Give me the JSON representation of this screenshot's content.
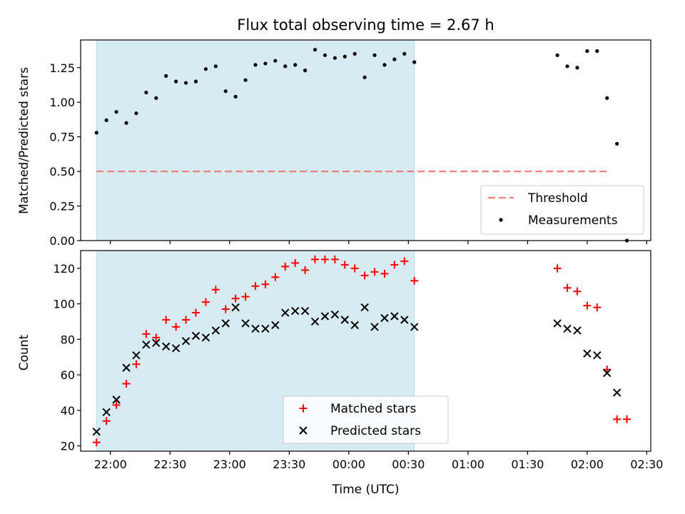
{
  "chart_data": [
    {
      "type": "scatter",
      "title": "Flux total observing time = 2.67 h",
      "xlabel": "",
      "ylabel": "Matched/Predicted stars",
      "xlim": [
        "21:45",
        "02:32"
      ],
      "ylim": [
        0,
        1.45
      ],
      "xticks": [
        "22:00",
        "22:30",
        "23:00",
        "23:30",
        "00:00",
        "00:30",
        "01:00",
        "01:30",
        "02:00",
        "02:30"
      ],
      "yticks": [
        "0.00",
        "0.25",
        "0.50",
        "0.75",
        "1.00",
        "1.25"
      ],
      "shaded_interval": [
        "21:53",
        "00:33"
      ],
      "threshold_line": {
        "name": "Threshold",
        "y": 0.5,
        "x_range": [
          "21:53",
          "02:11"
        ],
        "color": "#f08080"
      },
      "legend_position": "lower-right",
      "series": [
        {
          "name": "Measurements",
          "color": "#000000",
          "points": [
            [
              "21:53",
              0.78
            ],
            [
              "21:58",
              0.87
            ],
            [
              "22:03",
              0.93
            ],
            [
              "22:08",
              0.85
            ],
            [
              "22:13",
              0.92
            ],
            [
              "22:18",
              1.07
            ],
            [
              "22:23",
              1.03
            ],
            [
              "22:28",
              1.19
            ],
            [
              "22:33",
              1.15
            ],
            [
              "22:38",
              1.14
            ],
            [
              "22:43",
              1.15
            ],
            [
              "22:48",
              1.24
            ],
            [
              "22:53",
              1.26
            ],
            [
              "22:58",
              1.08
            ],
            [
              "23:03",
              1.04
            ],
            [
              "23:08",
              1.16
            ],
            [
              "23:13",
              1.27
            ],
            [
              "23:18",
              1.28
            ],
            [
              "23:23",
              1.3
            ],
            [
              "23:28",
              1.26
            ],
            [
              "23:33",
              1.27
            ],
            [
              "23:38",
              1.23
            ],
            [
              "23:43",
              1.38
            ],
            [
              "23:48",
              1.34
            ],
            [
              "23:53",
              1.32
            ],
            [
              "23:58",
              1.33
            ],
            [
              "00:03",
              1.35
            ],
            [
              "00:08",
              1.18
            ],
            [
              "00:13",
              1.34
            ],
            [
              "00:18",
              1.27
            ],
            [
              "00:23",
              1.31
            ],
            [
              "00:28",
              1.35
            ],
            [
              "00:33",
              1.29
            ],
            [
              "01:45",
              1.34
            ],
            [
              "01:50",
              1.26
            ],
            [
              "01:55",
              1.25
            ],
            [
              "02:00",
              1.37
            ],
            [
              "02:05",
              1.37
            ],
            [
              "02:10",
              1.03
            ],
            [
              "02:15",
              0.7
            ],
            [
              "02:20",
              0.0
            ]
          ]
        }
      ]
    },
    {
      "type": "scatter",
      "title": "",
      "xlabel": "Time (UTC)",
      "ylabel": "Count",
      "xlim": [
        "21:45",
        "02:32"
      ],
      "ylim": [
        17,
        130
      ],
      "xticks": [
        "22:00",
        "22:30",
        "23:00",
        "23:30",
        "00:00",
        "00:30",
        "01:00",
        "01:30",
        "02:00",
        "02:30"
      ],
      "yticks": [
        "20",
        "40",
        "60",
        "80",
        "100",
        "120"
      ],
      "shaded_interval": [
        "21:53",
        "00:33"
      ],
      "legend_position": "lower-center",
      "series": [
        {
          "name": "Matched stars",
          "marker": "plus",
          "color": "#ff0000",
          "points": [
            [
              "21:53",
              22
            ],
            [
              "21:58",
              34
            ],
            [
              "22:03",
              43
            ],
            [
              "22:08",
              55
            ],
            [
              "22:13",
              66
            ],
            [
              "22:18",
              83
            ],
            [
              "22:23",
              81
            ],
            [
              "22:28",
              91
            ],
            [
              "22:33",
              87
            ],
            [
              "22:38",
              91
            ],
            [
              "22:43",
              95
            ],
            [
              "22:48",
              101
            ],
            [
              "22:53",
              108
            ],
            [
              "22:58",
              97
            ],
            [
              "23:03",
              103
            ],
            [
              "23:08",
              104
            ],
            [
              "23:13",
              110
            ],
            [
              "23:18",
              111
            ],
            [
              "23:23",
              115
            ],
            [
              "23:28",
              121
            ],
            [
              "23:33",
              123
            ],
            [
              "23:38",
              119
            ],
            [
              "23:43",
              125
            ],
            [
              "23:48",
              125
            ],
            [
              "23:53",
              125
            ],
            [
              "23:58",
              122
            ],
            [
              "00:03",
              120
            ],
            [
              "00:08",
              116
            ],
            [
              "00:13",
              118
            ],
            [
              "00:18",
              117
            ],
            [
              "00:23",
              122
            ],
            [
              "00:28",
              124
            ],
            [
              "00:33",
              113
            ],
            [
              "01:45",
              120
            ],
            [
              "01:50",
              109
            ],
            [
              "01:55",
              107
            ],
            [
              "02:00",
              99
            ],
            [
              "02:05",
              98
            ],
            [
              "02:10",
              63
            ],
            [
              "02:15",
              35
            ],
            [
              "02:20",
              35
            ]
          ]
        },
        {
          "name": "Predicted stars",
          "marker": "x",
          "color": "#000000",
          "points": [
            [
              "21:53",
              28
            ],
            [
              "21:58",
              39
            ],
            [
              "22:03",
              46
            ],
            [
              "22:08",
              64
            ],
            [
              "22:13",
              71
            ],
            [
              "22:18",
              77
            ],
            [
              "22:23",
              78
            ],
            [
              "22:28",
              76
            ],
            [
              "22:33",
              75
            ],
            [
              "22:38",
              79
            ],
            [
              "22:43",
              82
            ],
            [
              "22:48",
              81
            ],
            [
              "22:53",
              85
            ],
            [
              "22:58",
              89
            ],
            [
              "23:03",
              98
            ],
            [
              "23:08",
              89
            ],
            [
              "23:13",
              86
            ],
            [
              "23:18",
              86
            ],
            [
              "23:23",
              88
            ],
            [
              "23:28",
              95
            ],
            [
              "23:33",
              96
            ],
            [
              "23:38",
              96
            ],
            [
              "23:43",
              90
            ],
            [
              "23:48",
              93
            ],
            [
              "23:53",
              94
            ],
            [
              "23:58",
              91
            ],
            [
              "00:03",
              88
            ],
            [
              "00:08",
              98
            ],
            [
              "00:13",
              87
            ],
            [
              "00:18",
              92
            ],
            [
              "00:23",
              93
            ],
            [
              "00:28",
              91
            ],
            [
              "00:33",
              87
            ],
            [
              "01:45",
              89
            ],
            [
              "01:50",
              86
            ],
            [
              "01:55",
              85
            ],
            [
              "02:00",
              72
            ],
            [
              "02:05",
              71
            ],
            [
              "02:10",
              61
            ],
            [
              "02:15",
              50
            ]
          ]
        }
      ]
    }
  ]
}
